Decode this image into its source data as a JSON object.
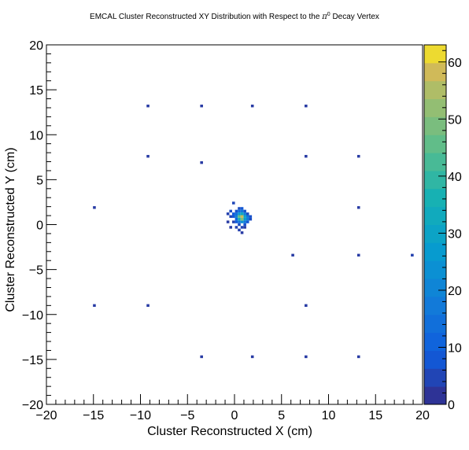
{
  "chart_data": {
    "type": "heatmap",
    "title": "EMCAL Cluster Reconstructed XY Distribution with Respect to the π⁰ Decay Vertex",
    "title_parts": {
      "prefix": "EMCAL Cluster Reconstructed XY Distribution with Respect to the ",
      "pi": "π",
      "zero": "0",
      "suffix": " Decay Vertex"
    },
    "xlabel": "Cluster Reconstructed X (cm)",
    "ylabel": "Cluster Reconstructed Y (cm)",
    "xlim": [
      -20,
      20
    ],
    "ylim": [
      -20,
      20
    ],
    "xticks": [
      "−20",
      "−15",
      "−10",
      "−5",
      "0",
      "5",
      "10",
      "15",
      "20"
    ],
    "yticks": [
      "−20",
      "−15",
      "−10",
      "−5",
      "0",
      "5",
      "10",
      "15",
      "20"
    ],
    "colorbar": {
      "min": 0,
      "max": 63,
      "ticks": [
        "0",
        "10",
        "20",
        "30",
        "40",
        "50",
        "60"
      ]
    },
    "grid": false,
    "legend": "none",
    "bin_size": 0.3,
    "points": [
      {
        "x": -9.2,
        "y": 13.2,
        "v": 3
      },
      {
        "x": -3.5,
        "y": 13.2,
        "v": 3
      },
      {
        "x": 1.9,
        "y": 13.2,
        "v": 3
      },
      {
        "x": 7.6,
        "y": 13.2,
        "v": 3
      },
      {
        "x": -9.2,
        "y": 7.6,
        "v": 3
      },
      {
        "x": -3.5,
        "y": 6.9,
        "v": 3
      },
      {
        "x": 7.6,
        "y": 7.6,
        "v": 3
      },
      {
        "x": 13.2,
        "y": 7.6,
        "v": 3
      },
      {
        "x": -14.9,
        "y": 1.9,
        "v": 3
      },
      {
        "x": 13.2,
        "y": 1.9,
        "v": 3
      },
      {
        "x": 6.2,
        "y": -3.4,
        "v": 3
      },
      {
        "x": 13.2,
        "y": -3.4,
        "v": 3
      },
      {
        "x": 18.9,
        "y": -3.4,
        "v": 4
      },
      {
        "x": -14.9,
        "y": -9.0,
        "v": 3
      },
      {
        "x": -9.2,
        "y": -9.0,
        "v": 3
      },
      {
        "x": 7.6,
        "y": -9.0,
        "v": 3
      },
      {
        "x": -3.5,
        "y": -14.7,
        "v": 3
      },
      {
        "x": 1.9,
        "y": -14.7,
        "v": 3
      },
      {
        "x": 7.6,
        "y": -14.7,
        "v": 3
      },
      {
        "x": 13.2,
        "y": -14.7,
        "v": 3
      },
      {
        "x": -0.1,
        "y": 2.4,
        "v": 5
      },
      {
        "x": -0.4,
        "y": 1.5,
        "v": 6
      },
      {
        "x": -0.7,
        "y": 1.2,
        "v": 4
      },
      {
        "x": -0.7,
        "y": 0.3,
        "v": 3
      },
      {
        "x": -0.4,
        "y": -0.3,
        "v": 3
      },
      {
        "x": 0.2,
        "y": -0.3,
        "v": 4
      },
      {
        "x": 0.5,
        "y": -0.6,
        "v": 4
      },
      {
        "x": 0.8,
        "y": -0.3,
        "v": 5
      },
      {
        "x": 1.1,
        "y": -0.3,
        "v": 3
      },
      {
        "x": 0.8,
        "y": -0.9,
        "v": 3
      },
      {
        "x": -0.1,
        "y": 0.3,
        "v": 4
      },
      {
        "x": -0.4,
        "y": 0.9,
        "v": 5
      },
      {
        "x": 0.2,
        "y": 1.5,
        "v": 7
      },
      {
        "x": 0.5,
        "y": 1.8,
        "v": 6
      },
      {
        "x": 0.8,
        "y": 1.8,
        "v": 8
      },
      {
        "x": 1.1,
        "y": 1.5,
        "v": 7
      },
      {
        "x": 1.4,
        "y": 1.2,
        "v": 6
      },
      {
        "x": 1.7,
        "y": 0.9,
        "v": 7
      },
      {
        "x": 1.7,
        "y": 0.6,
        "v": 6
      },
      {
        "x": 1.4,
        "y": 0.3,
        "v": 8
      },
      {
        "x": 1.1,
        "y": 0.0,
        "v": 7
      },
      {
        "x": 0.5,
        "y": 0.0,
        "v": 6
      },
      {
        "x": 0.2,
        "y": 0.3,
        "v": 9
      },
      {
        "x": -0.1,
        "y": 0.9,
        "v": 8
      },
      {
        "x": -0.1,
        "y": 1.2,
        "v": 9
      },
      {
        "x": 0.2,
        "y": 1.2,
        "v": 14
      },
      {
        "x": 0.2,
        "y": 0.6,
        "v": 12
      },
      {
        "x": 0.5,
        "y": 0.3,
        "v": 15
      },
      {
        "x": 1.1,
        "y": 0.3,
        "v": 16
      },
      {
        "x": 1.4,
        "y": 0.6,
        "v": 18
      },
      {
        "x": 1.4,
        "y": 0.9,
        "v": 16
      },
      {
        "x": 1.1,
        "y": 1.2,
        "v": 18
      },
      {
        "x": 0.5,
        "y": 1.5,
        "v": 13
      },
      {
        "x": 0.8,
        "y": 1.5,
        "v": 17
      },
      {
        "x": 0.2,
        "y": 0.9,
        "v": 20
      },
      {
        "x": 0.5,
        "y": 1.2,
        "v": 26
      },
      {
        "x": 0.8,
        "y": 1.2,
        "v": 32
      },
      {
        "x": 1.1,
        "y": 0.9,
        "v": 30
      },
      {
        "x": 1.1,
        "y": 0.6,
        "v": 27
      },
      {
        "x": 0.8,
        "y": 0.3,
        "v": 24
      },
      {
        "x": 0.5,
        "y": 0.6,
        "v": 34
      },
      {
        "x": 0.5,
        "y": 0.9,
        "v": 46
      },
      {
        "x": 0.8,
        "y": 0.9,
        "v": 58
      },
      {
        "x": 0.8,
        "y": 0.6,
        "v": 50
      }
    ]
  }
}
